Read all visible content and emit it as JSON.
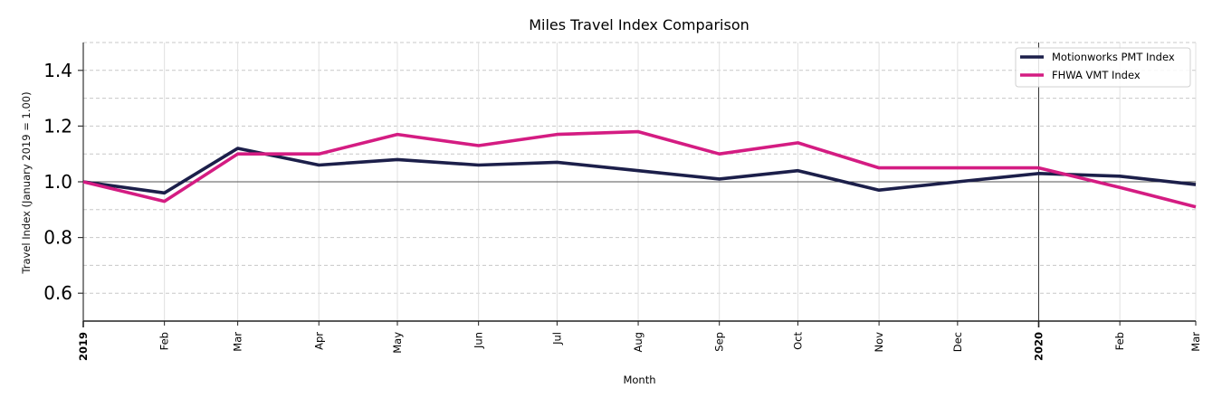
{
  "chart_data": {
    "type": "line",
    "title": "Miles Travel Index Comparison",
    "xlabel": "Month",
    "ylabel": "Travel Index (January 2019 = 1.00)",
    "ylim": [
      0.5,
      1.5
    ],
    "yticks": [
      0.6,
      0.8,
      1.0,
      1.2,
      1.4
    ],
    "ytick_labels": [
      "0.6",
      "0.8",
      "1.0",
      "1.2",
      "1.4"
    ],
    "grid": true,
    "reference_line": 1.0,
    "vertical_marker": "2020",
    "legend_position": "upper right",
    "categories": [
      "2019",
      "Feb",
      "Mar",
      "Apr",
      "May",
      "Jun",
      "Jul",
      "Aug",
      "Sep",
      "Oct",
      "Nov",
      "Dec",
      "2020",
      "Feb",
      "Mar"
    ],
    "x": [
      "2019-01",
      "2019-02",
      "2019-03",
      "2019-04",
      "2019-05",
      "2019-06",
      "2019-07",
      "2019-08",
      "2019-09",
      "2019-10",
      "2019-11",
      "2019-12",
      "2020-01",
      "2020-02",
      "2020-03"
    ],
    "series": [
      {
        "name": "Motionworks PMT Index",
        "color": "#1c1f4a",
        "values": [
          1.0,
          0.96,
          1.12,
          1.06,
          1.08,
          1.06,
          1.07,
          1.04,
          1.01,
          1.04,
          0.97,
          1.0,
          1.03,
          1.02,
          0.99
        ]
      },
      {
        "name": "FHWA VMT Index",
        "color": "#d41c82",
        "values": [
          1.0,
          0.93,
          1.1,
          1.1,
          1.17,
          1.13,
          1.17,
          1.18,
          1.1,
          1.14,
          1.05,
          1.05,
          1.05,
          0.98,
          0.91
        ]
      }
    ]
  }
}
